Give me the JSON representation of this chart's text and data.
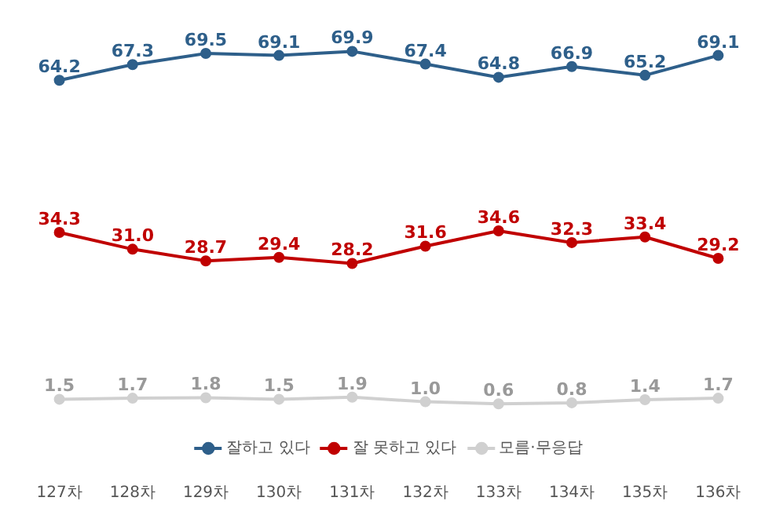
{
  "chart_data": {
    "type": "line",
    "categories": [
      "127차",
      "128차",
      "129차",
      "130차",
      "131차",
      "132차",
      "133차",
      "134차",
      "135차",
      "136차"
    ],
    "series": [
      {
        "name": "잘하고 있다",
        "color": "#2e5f8a",
        "values": [
          64.2,
          67.3,
          69.5,
          69.1,
          69.9,
          67.4,
          64.8,
          66.9,
          65.2,
          69.1
        ],
        "value_labels": [
          "64.2",
          "67.3",
          "69.5",
          "69.1",
          "69.9",
          "67.4",
          "64.8",
          "66.9",
          "65.2",
          "69.1"
        ]
      },
      {
        "name": "잘 못하고 있다",
        "color": "#c00000",
        "values": [
          34.3,
          31.0,
          28.7,
          29.4,
          28.2,
          31.6,
          34.6,
          32.3,
          33.4,
          29.2
        ],
        "value_labels": [
          "34.3",
          "31.0",
          "28.7",
          "29.4",
          "28.2",
          "31.6",
          "34.6",
          "32.3",
          "33.4",
          "29.2"
        ]
      },
      {
        "name": "모름·무응답",
        "color": "#d0d0d0",
        "values": [
          1.5,
          1.7,
          1.8,
          1.5,
          1.9,
          1.0,
          0.6,
          0.8,
          1.4,
          1.7
        ],
        "value_labels": [
          "1.5",
          "1.7",
          "1.8",
          "1.5",
          "1.9",
          "1.0",
          "0.6",
          "0.8",
          "1.4",
          "1.7"
        ]
      }
    ],
    "marker": "circle",
    "line_style": "solid",
    "legend": "bottom",
    "tick_labels": "x",
    "data_labels": true,
    "grid": false
  }
}
